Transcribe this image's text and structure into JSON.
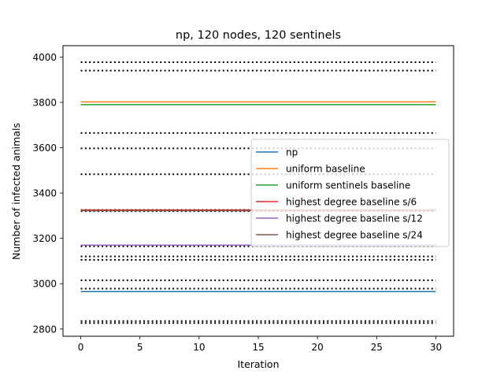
{
  "chart_data": {
    "type": "line",
    "title": "np, 120 nodes, 120 sentinels",
    "xlabel": "Iteration",
    "ylabel": "Number of infected animals",
    "xlim": [
      -1.5,
      31.5
    ],
    "ylim": [
      2768,
      4050
    ],
    "xticks": [
      0,
      5,
      10,
      15,
      20,
      25,
      30
    ],
    "yticks": [
      2800,
      3000,
      3200,
      3400,
      3600,
      3800,
      4000
    ],
    "grid": false,
    "legend_position": "center-right",
    "x": [
      0,
      30
    ],
    "series": [
      {
        "name": "np",
        "color": "#1f77b4",
        "values": [
          2965,
          2965
        ]
      },
      {
        "name": "uniform baseline",
        "color": "#ff7f0e",
        "values": [
          3802,
          3802
        ]
      },
      {
        "name": "uniform sentinels baseline",
        "color": "#2ca02c",
        "values": [
          3790,
          3790
        ]
      },
      {
        "name": "highest degree baseline s/6",
        "color": "#d62728",
        "values": [
          3325,
          3325
        ]
      },
      {
        "name": "highest degree baseline s/12",
        "color": "#9467bd",
        "values": [
          3170,
          3170
        ]
      },
      {
        "name": "highest degree baseline s/24",
        "color": "#8c564b",
        "values": [
          3322,
          3322
        ]
      }
    ],
    "reference_lines": {
      "style": "dotted",
      "color": "#000000",
      "values": [
        3977,
        3940,
        3665,
        3597,
        3483,
        3325,
        3320,
        3165,
        3120,
        3105,
        3015,
        2978,
        2835,
        2826
      ]
    }
  }
}
